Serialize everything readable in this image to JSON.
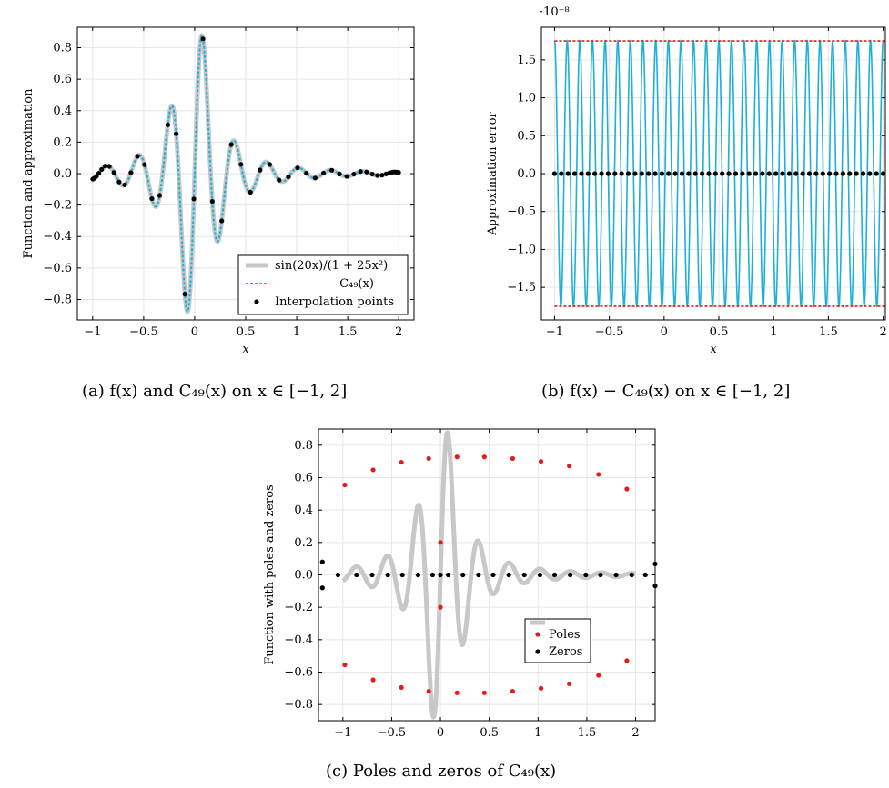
{
  "captions": {
    "a": "(a) f(x) and C₄₉(x) on x ∈ [−1, 2]",
    "b": "(b) f(x) − C₄₉(x) on x ∈ [−1, 2]",
    "c": "(c) Poles and zeros of C₄₉(x)"
  },
  "colors": {
    "function": "#c8c8c8",
    "approximation": "#1fb0d8",
    "points": "#000000",
    "error_line": "#1fb0d8",
    "bound": "#e41a1c",
    "poles": "#e41a1c",
    "zeros": "#000000"
  },
  "chart_data": [
    {
      "id": "a",
      "type": "line",
      "xlabel": "x",
      "ylabel": "Function and approximation",
      "xlim": [
        -1.15,
        2.15
      ],
      "ylim": [
        -0.93,
        0.93
      ],
      "xticks": [
        -1,
        -0.5,
        0,
        0.5,
        1,
        1.5,
        2
      ],
      "xtick_labels": [
        "−1",
        "−0.5",
        "0",
        "0.5",
        "1",
        "1.5",
        "2"
      ],
      "yticks": [
        -0.8,
        -0.6,
        -0.4,
        -0.2,
        0.0,
        0.2,
        0.4,
        0.6,
        0.8
      ],
      "ytick_labels": [
        "−0.8",
        "−0.6",
        "−0.4",
        "−0.2",
        "0.0",
        "0.2",
        "0.4",
        "0.6",
        "0.8"
      ],
      "grid": true,
      "legend_position": "bottom-right",
      "function": "sin(20x)/(1+25x^2)",
      "domain": [
        -1,
        2
      ],
      "series": [
        {
          "name": "sin(20x)/(1 + 25x²)",
          "style": "thick-gray-line"
        },
        {
          "name": "C₄₉(x)",
          "style": "dotted-cyan-line"
        },
        {
          "name": "Interpolation points",
          "style": "black-dots",
          "count": 50
        }
      ]
    },
    {
      "id": "b",
      "type": "line",
      "xlabel": "x",
      "ylabel": "Approximation error",
      "scale_label": "·10⁻⁸",
      "xlim": [
        -1.12,
        2.02
      ],
      "ylim": [
        -1.93,
        1.93
      ],
      "xticks": [
        -1,
        -0.5,
        0,
        0.5,
        1,
        1.5,
        2
      ],
      "xtick_labels": [
        "−1",
        "−0.5",
        "0",
        "0.5",
        "1",
        "1.5",
        "2"
      ],
      "yticks": [
        -1.5,
        -1.0,
        -0.5,
        0.0,
        0.5,
        1.0,
        1.5
      ],
      "ytick_labels": [
        "−1.5",
        "−1.0",
        "−0.5",
        "0.0",
        "0.5",
        "1.0",
        "1.5"
      ],
      "grid": true,
      "error_amplitude": 1.75,
      "oscillations": 26,
      "zero_point_count": 50
    },
    {
      "id": "c",
      "type": "scatter",
      "xlabel": "",
      "ylabel": "Function with poles and zeros",
      "xlim": [
        -1.25,
        2.2
      ],
      "ylim": [
        -0.9,
        0.9
      ],
      "xticks": [
        -1,
        -0.5,
        0,
        0.5,
        1,
        1.5,
        2
      ],
      "xtick_labels": [
        "−1",
        "−0.5",
        "0",
        "0.5",
        "1",
        "1.5",
        "2"
      ],
      "yticks": [
        -0.8,
        -0.6,
        -0.4,
        -0.2,
        0.0,
        0.2,
        0.4,
        0.6,
        0.8
      ],
      "ytick_labels": [
        "−0.8",
        "−0.6",
        "−0.4",
        "−0.2",
        "0.0",
        "0.2",
        "0.4",
        "0.6",
        "0.8"
      ],
      "grid": true,
      "legend_position": "right-middle",
      "series": [
        {
          "name": "Poles",
          "points": [
            [
              -0.98,
              0.555
            ],
            [
              -0.69,
              0.648
            ],
            [
              -0.4,
              0.695
            ],
            [
              -0.12,
              0.718
            ],
            [
              0.0,
              0.2
            ],
            [
              0.17,
              0.728
            ],
            [
              0.45,
              0.728
            ],
            [
              0.74,
              0.718
            ],
            [
              1.03,
              0.7
            ],
            [
              1.32,
              0.672
            ],
            [
              1.62,
              0.62
            ],
            [
              1.91,
              0.53
            ],
            [
              -0.98,
              -0.555
            ],
            [
              -0.69,
              -0.648
            ],
            [
              -0.4,
              -0.695
            ],
            [
              -0.12,
              -0.718
            ],
            [
              0.0,
              -0.2
            ],
            [
              0.17,
              -0.728
            ],
            [
              0.45,
              -0.728
            ],
            [
              0.74,
              -0.718
            ],
            [
              1.03,
              -0.7
            ],
            [
              1.32,
              -0.672
            ],
            [
              1.62,
              -0.62
            ],
            [
              1.91,
              -0.53
            ]
          ]
        },
        {
          "name": "Zeros",
          "points": [
            [
              -1.21,
              0.08
            ],
            [
              -1.21,
              -0.08
            ],
            [
              2.2,
              0.068
            ],
            [
              2.2,
              -0.068
            ],
            [
              -1.05,
              0
            ],
            [
              -0.86,
              0
            ],
            [
              -0.7,
              0
            ],
            [
              -0.54,
              0
            ],
            [
              -0.39,
              0
            ],
            [
              -0.23,
              0
            ],
            [
              -0.08,
              0
            ],
            [
              0.0,
              0
            ],
            [
              0.08,
              0
            ],
            [
              0.23,
              0
            ],
            [
              0.39,
              0
            ],
            [
              0.54,
              0
            ],
            [
              0.7,
              0
            ],
            [
              0.86,
              0
            ],
            [
              1.02,
              0
            ],
            [
              1.17,
              0
            ],
            [
              1.33,
              0
            ],
            [
              1.49,
              0
            ],
            [
              1.64,
              0
            ],
            [
              1.8,
              0
            ],
            [
              1.96,
              0
            ],
            [
              2.1,
              0
            ]
          ]
        }
      ],
      "function": "sin(20x)/(1+25x^2)",
      "domain": [
        -1,
        2
      ]
    }
  ]
}
